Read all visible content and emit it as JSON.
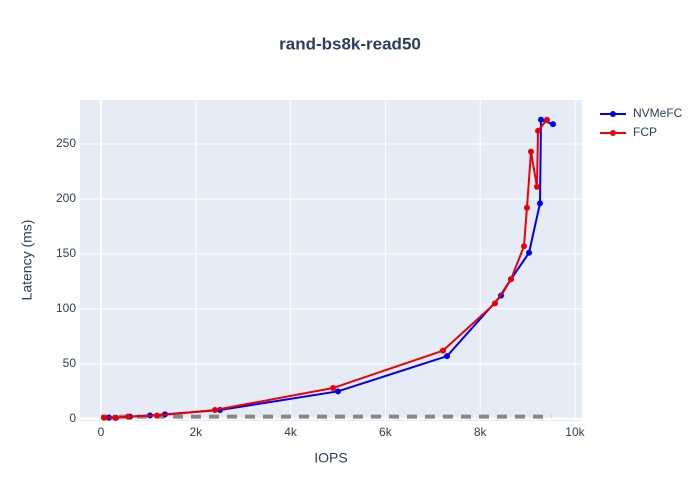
{
  "chart_data": {
    "type": "line",
    "title": "rand-bs8k-read50",
    "x_label": "IOPS",
    "y_label": "Latency (ms)",
    "xlim": [
      -443,
      10148
    ],
    "ylim": [
      -2,
      290
    ],
    "xticks": [
      0,
      {
        "value": 2000,
        "label": "2k"
      },
      {
        "value": 4000,
        "label": "4k"
      },
      {
        "value": 6000,
        "label": "6k"
      },
      {
        "value": 8000,
        "label": "8k"
      },
      {
        "value": 10000,
        "label": "10k"
      }
    ],
    "yticks": [
      0,
      50,
      100,
      150,
      200,
      250
    ],
    "grid": true,
    "legend": "top-right",
    "series": [
      {
        "name": "NVMeFC",
        "color": "#0000ee",
        "x": [
          169,
          316,
          612,
          1034,
          1350,
          2511,
          5000,
          7300,
          8439,
          8650,
          9030,
          9262,
          9283,
          9536
        ],
        "values": [
          1,
          1,
          2,
          3,
          4,
          8,
          25,
          57,
          112,
          127,
          151,
          196,
          272,
          268
        ]
      },
      {
        "name": "FCP",
        "color": "#ee0000",
        "x": [
          63,
          295,
          570,
          1181,
          2405,
          4895,
          7215,
          8312,
          8650,
          8924,
          8987,
          9072,
          9198,
          9220,
          9409
        ],
        "values": [
          1,
          1,
          2,
          3,
          8,
          28,
          62,
          105,
          127,
          157,
          192,
          243,
          211,
          262,
          272
        ]
      }
    ],
    "baseline": {
      "color": "#888888",
      "x": [
        0,
        9500
      ],
      "values": [
        2,
        2
      ]
    }
  }
}
